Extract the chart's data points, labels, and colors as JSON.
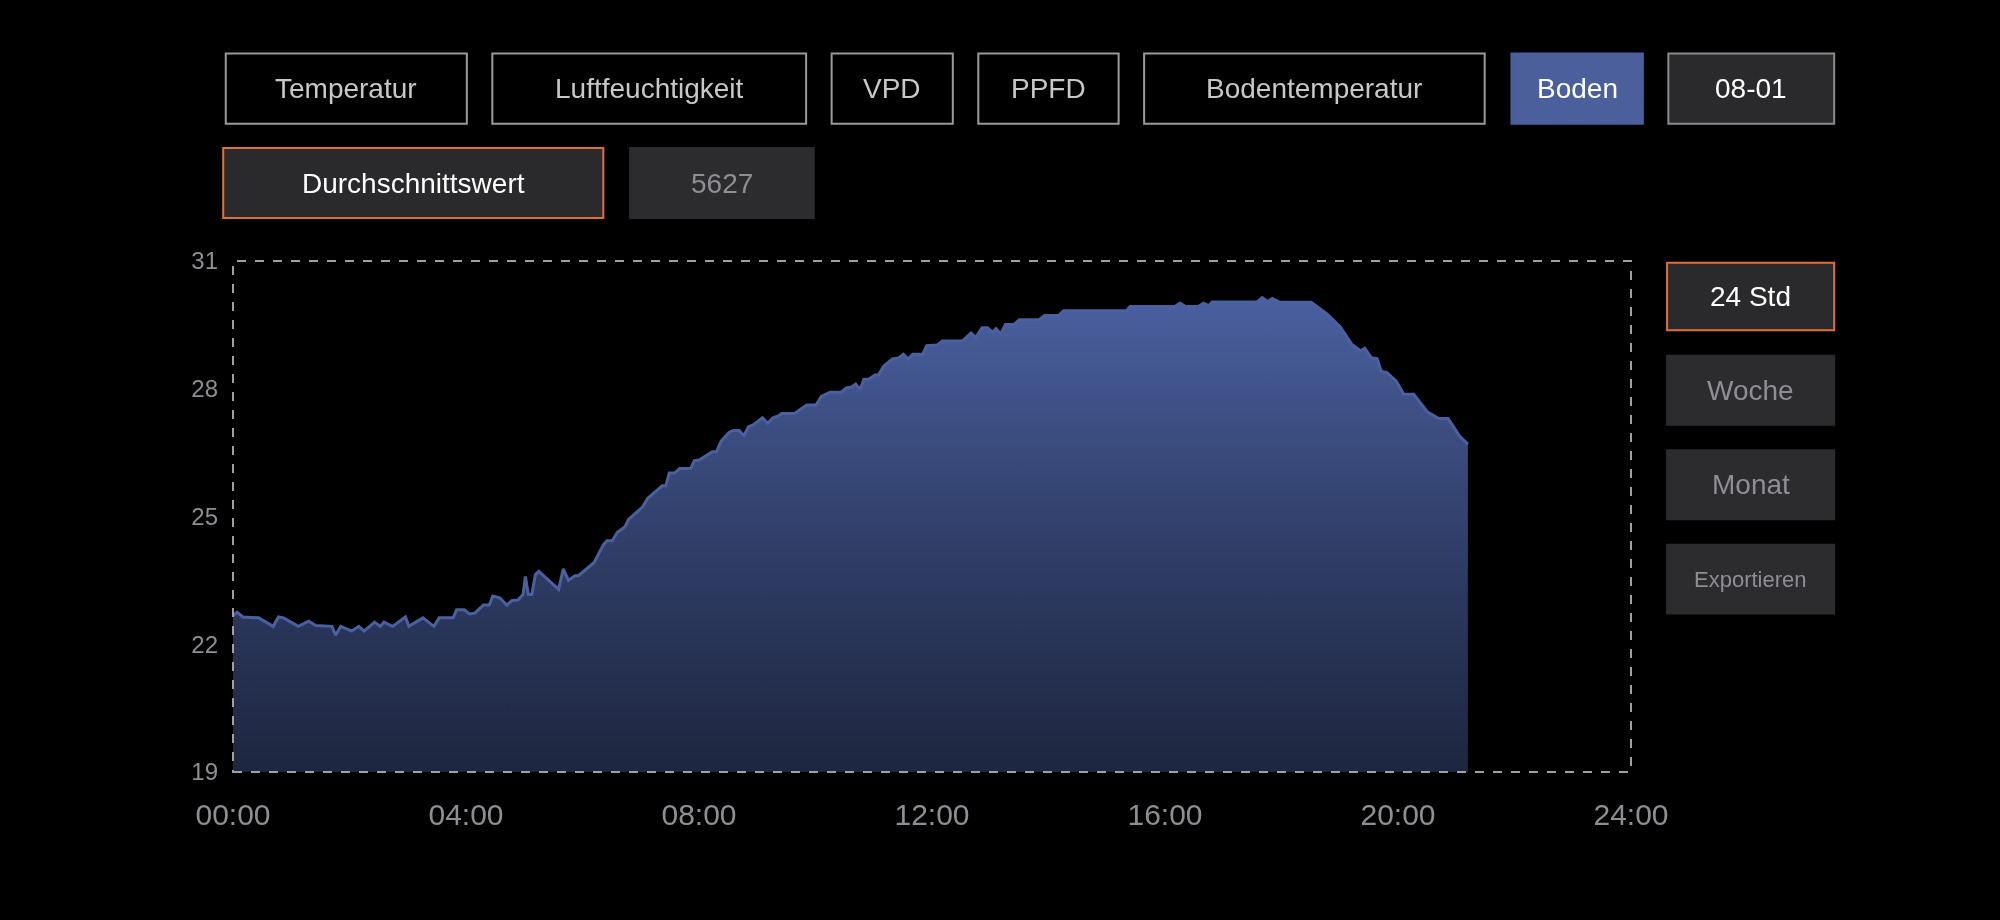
{
  "chart_data": {
    "type": "area",
    "x": [
      0,
      0.07,
      0.17,
      0.44,
      0.69,
      0.78,
      0.87,
      1.12,
      1.3,
      1.42,
      1.7,
      1.76,
      1.85,
      2.04,
      2.16,
      2.25,
      2.43,
      2.53,
      2.59,
      2.74,
      2.96,
      3.02,
      3.14,
      3.26,
      3.45,
      3.54,
      3.78,
      3.84,
      3.97,
      4.06,
      4.15,
      4.3,
      4.4,
      4.46,
      4.58,
      4.7,
      4.79,
      4.89,
      4.98,
      5.02,
      5.07,
      5.13,
      5.19,
      5.25,
      5.59,
      5.67,
      5.76,
      5.87,
      5.93,
      6.2,
      6.36,
      6.42,
      6.51,
      6.6,
      6.73,
      6.79,
      7.03,
      7.12,
      7.37,
      7.43,
      7.49,
      7.58,
      7.67,
      7.86,
      7.92,
      8.01,
      8.23,
      8.3,
      8.38,
      8.52,
      8.59,
      8.69,
      8.77,
      8.85,
      8.93,
      9.09,
      9.18,
      9.27,
      9.36,
      9.42,
      9.64,
      9.85,
      10.01,
      10.1,
      10.25,
      10.44,
      10.53,
      10.62,
      10.69,
      10.77,
      10.83,
      10.92,
      11.02,
      11.08,
      11.17,
      11.32,
      11.42,
      11.51,
      11.59,
      11.67,
      11.84,
      11.91,
      12.09,
      12.18,
      12.52,
      12.67,
      12.75,
      12.86,
      12.95,
      13.04,
      13.1,
      13.18,
      13.26,
      13.41,
      13.5,
      13.84,
      13.93,
      14.17,
      14.26,
      15.34,
      15.4,
      16.17,
      16.26,
      16.35,
      16.57,
      16.66,
      16.75,
      16.81,
      17.58,
      17.67,
      17.76,
      17.84,
      17.96,
      18.51,
      18.78,
      19.01,
      19.21,
      19.36,
      19.43,
      19.54,
      19.64,
      19.71,
      19.81,
      19.97,
      20.1,
      20.27,
      20.5,
      20.7,
      20.86,
      21.06,
      21.2
    ],
    "series": [
      {
        "color": "#4a60a0",
        "values": [
          22.67,
          22.75,
          22.64,
          22.62,
          22.42,
          22.64,
          22.62,
          22.42,
          22.54,
          22.44,
          22.42,
          22.21,
          22.42,
          22.31,
          22.42,
          22.31,
          22.52,
          22.42,
          22.52,
          22.42,
          22.64,
          22.42,
          22.52,
          22.62,
          22.42,
          22.62,
          22.62,
          22.81,
          22.81,
          22.71,
          22.73,
          22.92,
          22.92,
          23.13,
          23.09,
          22.92,
          23.03,
          23.04,
          23.17,
          23.59,
          23.17,
          23.17,
          23.63,
          23.71,
          23.29,
          23.77,
          23.5,
          23.61,
          23.61,
          23.92,
          24.34,
          24.43,
          24.43,
          24.63,
          24.76,
          24.93,
          25.22,
          25.43,
          25.72,
          25.72,
          26.02,
          26.02,
          26.13,
          26.13,
          26.31,
          26.33,
          26.52,
          26.52,
          26.77,
          26.98,
          27.02,
          27.02,
          26.9,
          27.11,
          27.15,
          27.32,
          27.19,
          27.32,
          27.36,
          27.42,
          27.42,
          27.62,
          27.62,
          27.82,
          27.92,
          27.92,
          28.02,
          28.04,
          28.11,
          27.98,
          28.22,
          28.23,
          28.32,
          28.32,
          28.53,
          28.7,
          28.72,
          28.81,
          28.7,
          28.81,
          28.81,
          29.01,
          29.03,
          29.12,
          29.12,
          29.31,
          29.2,
          29.43,
          29.43,
          29.33,
          29.41,
          29.28,
          29.51,
          29.51,
          29.62,
          29.62,
          29.72,
          29.72,
          29.83,
          29.83,
          29.93,
          29.93,
          30.01,
          29.93,
          29.93,
          30.01,
          29.95,
          30.04,
          30.04,
          30.14,
          30.05,
          30.12,
          30.04,
          30.03,
          29.76,
          29.45,
          29.04,
          28.89,
          28.95,
          28.73,
          28.71,
          28.41,
          28.38,
          28.18,
          27.87,
          27.87,
          27.46,
          27.3,
          27.3,
          26.88,
          26.7
        ]
      }
    ],
    "xlim": [
      0,
      24
    ],
    "xticks": [
      {
        "value": 0,
        "label": "00:00"
      },
      {
        "value": 4,
        "label": "04:00"
      },
      {
        "value": 8,
        "label": "08:00"
      },
      {
        "value": 12,
        "label": "12:00"
      },
      {
        "value": 16,
        "label": "16:00"
      },
      {
        "value": 20,
        "label": "20:00"
      },
      {
        "value": 24,
        "label": "24:00"
      }
    ],
    "ylim": [
      19,
      31
    ],
    "yticks": [
      19,
      22,
      25,
      28,
      31
    ],
    "grid": false,
    "annotations": [
      "Temperatur",
      "Luftfeuchtigkeit",
      "VPD",
      "PPFD",
      "Bodentemperatur",
      "Boden",
      "08-01",
      "Durchschnittswert",
      "5627",
      "24 Std",
      "Woche",
      "Monat",
      "Exportieren"
    ]
  }
}
